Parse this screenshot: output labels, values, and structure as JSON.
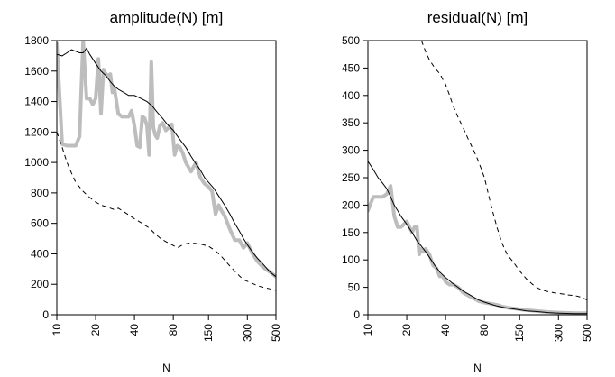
{
  "chart_data": [
    {
      "type": "line",
      "title": "amplitude(N) [m]",
      "xlabel": "N",
      "ylabel": "",
      "x_scale": "log",
      "xlim": [
        10,
        500
      ],
      "ylim": [
        0,
        1800
      ],
      "x_ticks": [
        10,
        20,
        40,
        80,
        150,
        300,
        500
      ],
      "y_ticks": [
        0,
        200,
        400,
        600,
        800,
        1000,
        1200,
        1400,
        1600,
        1800
      ],
      "grid": false,
      "series": [
        {
          "style": "thick-gray",
          "x": [
            10,
            11,
            12,
            13,
            14,
            15,
            16,
            17,
            18,
            19,
            20,
            21,
            22,
            23,
            24,
            25,
            26,
            27,
            28,
            30,
            32,
            34,
            36,
            38,
            40,
            42,
            44,
            46,
            48,
            50,
            52,
            54,
            56,
            58,
            60,
            63,
            66,
            70,
            74,
            78,
            82,
            86,
            90,
            95,
            100,
            110,
            120,
            130,
            140,
            150,
            160,
            170,
            180,
            190,
            200,
            220,
            240,
            260,
            280,
            300,
            330,
            360,
            400,
            450,
            500
          ],
          "y": [
            1780,
            1120,
            1110,
            1110,
            1110,
            1170,
            1800,
            1420,
            1420,
            1380,
            1420,
            1680,
            1320,
            1610,
            1580,
            1570,
            1580,
            1460,
            1480,
            1320,
            1300,
            1300,
            1300,
            1340,
            1240,
            1110,
            1100,
            1300,
            1290,
            1240,
            1050,
            1660,
            1230,
            1180,
            1160,
            1240,
            1260,
            1210,
            1230,
            1250,
            1050,
            1110,
            1100,
            1060,
            1000,
            940,
            1000,
            900,
            860,
            840,
            810,
            660,
            720,
            680,
            650,
            560,
            490,
            490,
            440,
            470,
            400,
            350,
            310,
            280,
            250
          ]
        },
        {
          "style": "thin-black",
          "x": [
            10,
            11,
            12,
            13,
            14,
            15,
            16,
            17,
            18,
            19,
            20,
            22,
            24,
            26,
            28,
            30,
            33,
            36,
            40,
            45,
            50,
            55,
            60,
            66,
            72,
            80,
            90,
            100,
            110,
            120,
            130,
            140,
            150,
            165,
            180,
            200,
            220,
            240,
            260,
            280,
            300,
            330,
            360,
            400,
            450,
            500
          ],
          "y": [
            1710,
            1700,
            1720,
            1740,
            1730,
            1720,
            1720,
            1750,
            1710,
            1680,
            1650,
            1600,
            1570,
            1530,
            1500,
            1480,
            1460,
            1440,
            1440,
            1420,
            1400,
            1370,
            1330,
            1290,
            1250,
            1210,
            1150,
            1100,
            1040,
            990,
            950,
            900,
            870,
            830,
            780,
            720,
            660,
            600,
            550,
            500,
            460,
            410,
            370,
            330,
            280,
            250
          ]
        },
        {
          "style": "dashed",
          "x": [
            10,
            11,
            12,
            13,
            14,
            16,
            18,
            20,
            22,
            24,
            26,
            28,
            30,
            34,
            40,
            46,
            52,
            58,
            64,
            70,
            78,
            86,
            95,
            105,
            115,
            130,
            150,
            170,
            190,
            220,
            250,
            280,
            320,
            360,
            400,
            450,
            500
          ],
          "y": [
            1200,
            1100,
            1000,
            930,
            870,
            810,
            770,
            740,
            720,
            710,
            700,
            690,
            700,
            670,
            630,
            600,
            570,
            530,
            500,
            480,
            460,
            440,
            460,
            470,
            470,
            465,
            450,
            420,
            380,
            320,
            270,
            230,
            210,
            190,
            180,
            170,
            160
          ]
        }
      ]
    },
    {
      "type": "line",
      "title": "residual(N) [m]",
      "xlabel": "N",
      "ylabel": "",
      "x_scale": "log",
      "xlim": [
        10,
        500
      ],
      "ylim": [
        0,
        500
      ],
      "x_ticks": [
        10,
        20,
        40,
        80,
        150,
        300,
        500
      ],
      "y_ticks": [
        0,
        50,
        100,
        150,
        200,
        250,
        300,
        350,
        400,
        450,
        500
      ],
      "grid": false,
      "series": [
        {
          "style": "thick-gray",
          "x": [
            10,
            11,
            12,
            13,
            14,
            15,
            16,
            17,
            18,
            19,
            20,
            21,
            22,
            23,
            24,
            25,
            26,
            27,
            28,
            30,
            32,
            34,
            36,
            38,
            40,
            43,
            46,
            50,
            55,
            60,
            66,
            72,
            80,
            90,
            100,
            110,
            120,
            140,
            160,
            200,
            250,
            300,
            400,
            500
          ],
          "y": [
            190,
            215,
            215,
            215,
            220,
            235,
            180,
            160,
            160,
            165,
            170,
            160,
            150,
            160,
            160,
            110,
            120,
            115,
            120,
            110,
            90,
            85,
            70,
            70,
            60,
            55,
            55,
            50,
            40,
            35,
            30,
            25,
            22,
            20,
            18,
            15,
            13,
            11,
            9,
            7,
            5,
            4,
            3,
            3
          ]
        },
        {
          "style": "thin-black",
          "x": [
            10,
            11,
            12,
            13,
            14,
            15,
            16,
            17,
            18,
            20,
            22,
            24,
            26,
            28,
            30,
            33,
            36,
            40,
            45,
            50,
            55,
            60,
            66,
            72,
            80,
            90,
            100,
            115,
            130,
            150,
            170,
            200,
            250,
            300,
            400,
            500
          ],
          "y": [
            280,
            265,
            250,
            240,
            230,
            215,
            200,
            190,
            180,
            165,
            150,
            135,
            125,
            115,
            105,
            90,
            78,
            68,
            58,
            50,
            43,
            38,
            32,
            27,
            23,
            19,
            16,
            13,
            11,
            9,
            7,
            6,
            4,
            3,
            2,
            2
          ]
        },
        {
          "style": "dashed",
          "x": [
            26,
            28,
            30,
            33,
            36,
            40,
            43,
            46,
            50,
            55,
            60,
            66,
            72,
            80,
            90,
            100,
            110,
            120,
            135,
            150,
            170,
            190,
            210,
            240,
            280,
            320,
            360,
            400,
            450,
            500
          ],
          "y": [
            500,
            480,
            465,
            450,
            440,
            420,
            400,
            380,
            360,
            340,
            320,
            300,
            280,
            250,
            200,
            160,
            130,
            110,
            95,
            80,
            65,
            55,
            48,
            43,
            40,
            38,
            36,
            35,
            32,
            27
          ]
        }
      ]
    }
  ]
}
